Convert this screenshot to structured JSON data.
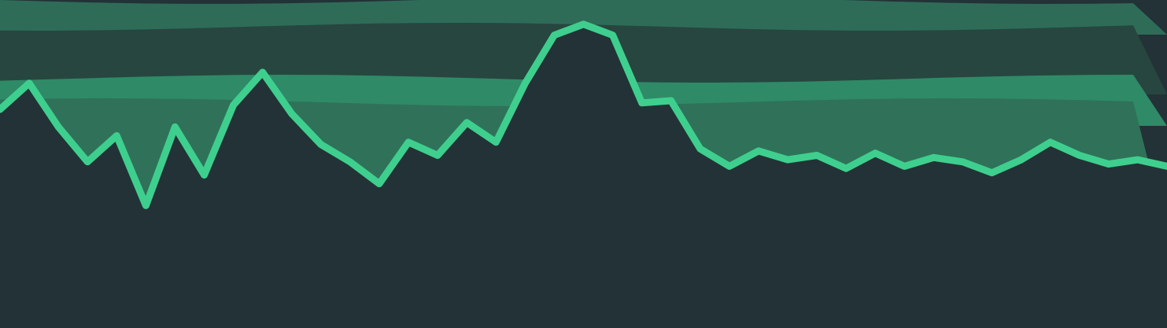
{
  "chart_data": {
    "type": "area",
    "title": "",
    "xlabel": "",
    "ylabel": "",
    "grid": false,
    "legend": "none",
    "background_color": "#233236",
    "background_bands": [
      {
        "name": "band-top",
        "color": "#2e6c58"
      },
      {
        "name": "band-upper-dark",
        "color": "#27463f"
      },
      {
        "name": "band-middle",
        "color": "#2f8a67"
      },
      {
        "name": "band-lower",
        "color": "#2f7259"
      }
    ],
    "series": [
      {
        "color": "#3ecf8e",
        "fill_color": "#233236",
        "x": [
          0,
          1,
          2,
          3,
          4,
          5,
          6,
          7,
          8,
          9,
          10,
          11,
          12,
          13,
          14,
          15,
          16,
          17,
          18,
          19,
          20,
          21,
          22,
          23,
          24,
          25,
          26,
          27,
          28,
          29,
          30,
          31,
          32,
          33,
          34,
          35,
          36,
          37,
          38,
          39,
          40
        ],
        "values": [
          60,
          72,
          52,
          36,
          48,
          16,
          52,
          30,
          62,
          77,
          58,
          44,
          36,
          26,
          45,
          39,
          54,
          45,
          72,
          94,
          99,
          94,
          63,
          64,
          42,
          34,
          41,
          37,
          39,
          33,
          40,
          34,
          38,
          36,
          31,
          37,
          45,
          39,
          35,
          37,
          34
        ]
      }
    ],
    "ylim": [
      -40,
      100
    ]
  }
}
